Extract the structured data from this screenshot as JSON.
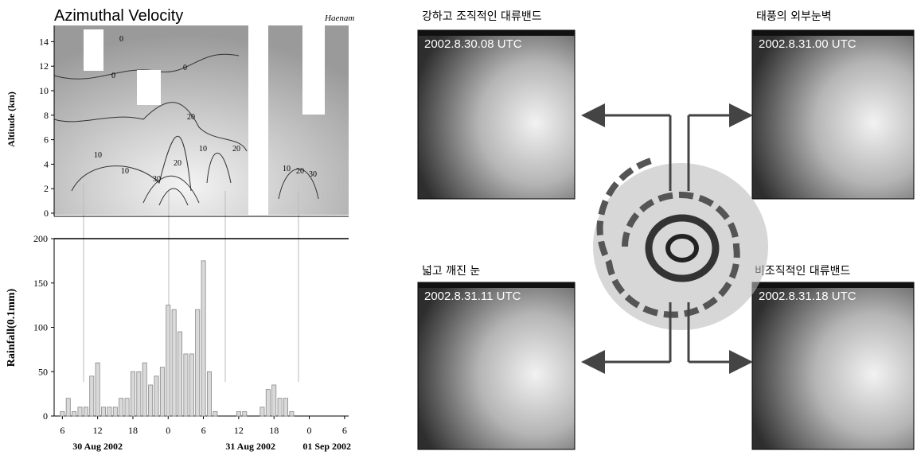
{
  "chart_data": [
    {
      "type": "contour",
      "title": "Azimuthal Velocity",
      "annotation": "Haenam",
      "ylabel": "Altitude (km)",
      "ylim": [
        0,
        15
      ],
      "yticks": [
        0,
        2,
        4,
        6,
        8,
        10,
        12,
        14
      ],
      "contour_labels": [
        "0",
        "0",
        "0",
        "10",
        "10",
        "10",
        "20",
        "30",
        "20",
        "20",
        "10",
        "20",
        "30"
      ]
    },
    {
      "type": "bar",
      "ylabel": "Rainfall(0.1mm)",
      "x": [
        6,
        7,
        8,
        9,
        10,
        11,
        12,
        13,
        14,
        15,
        16,
        17,
        18,
        19,
        20,
        21,
        22,
        23,
        24,
        25,
        26,
        27,
        28,
        29,
        30,
        31,
        32,
        36,
        37,
        40,
        41,
        42,
        43,
        44,
        45
      ],
      "values": [
        5,
        20,
        5,
        10,
        10,
        45,
        60,
        10,
        10,
        10,
        20,
        20,
        50,
        50,
        60,
        35,
        45,
        55,
        125,
        120,
        95,
        70,
        70,
        120,
        175,
        50,
        5,
        5,
        5,
        10,
        30,
        35,
        20,
        20,
        5
      ],
      "color": "#d9d9d9",
      "xlim": [
        4.6,
        54.7
      ],
      "xticks": [
        6,
        12,
        18,
        {
          "value": 24,
          "label": "0"
        },
        {
          "value": 30,
          "label": "6"
        },
        {
          "value": 36,
          "label": "12"
        },
        {
          "value": 42,
          "label": "18"
        },
        {
          "value": 48,
          "label": "0"
        },
        {
          "value": 54,
          "label": "6"
        }
      ],
      "ylim": [
        0,
        200
      ],
      "yticks": [
        0,
        50,
        100,
        150,
        200
      ],
      "date_labels": [
        {
          "x": 12,
          "label": "30 Aug 2002"
        },
        {
          "x": 38,
          "label": "31 Aug 2002"
        },
        {
          "x": 51,
          "label": "01 Sep 2002"
        }
      ]
    }
  ],
  "panels": [
    {
      "title": "강하고 조직적인 대류밴드",
      "time": "2002.8.30.08 UTC"
    },
    {
      "title": "태풍의 외부눈벽",
      "time": "2002.8.31.00 UTC"
    },
    {
      "title": "넓고 깨진 눈",
      "time": "2002.8.31.11 UTC"
    },
    {
      "title": "비조직적인 대류밴드",
      "time": "2002.8.31.18 UTC"
    }
  ]
}
